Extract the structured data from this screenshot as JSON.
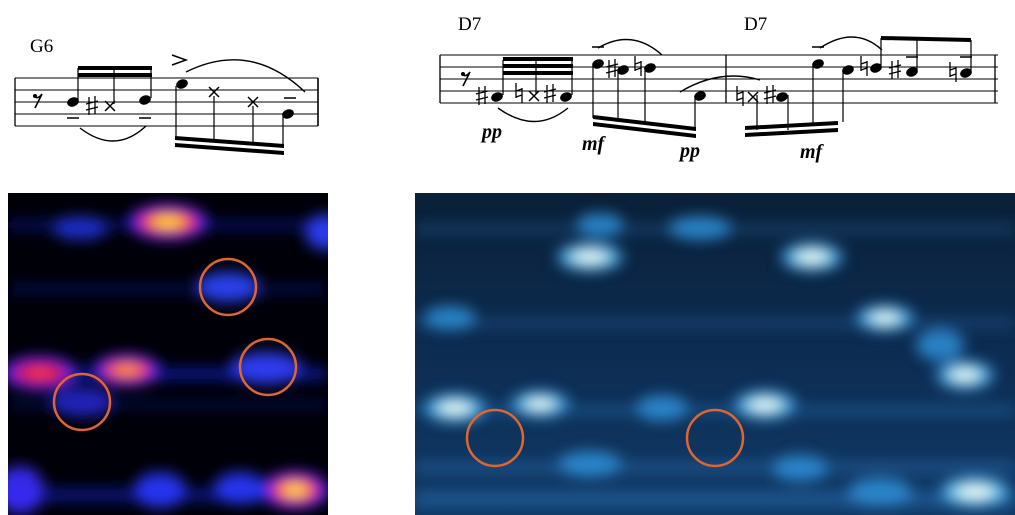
{
  "left_panel": {
    "chord": "G6"
  },
  "right_panel": {
    "chords": [
      "D7",
      "D7"
    ],
    "dynamics": [
      "pp",
      "mf",
      "pp",
      "mf"
    ]
  }
}
